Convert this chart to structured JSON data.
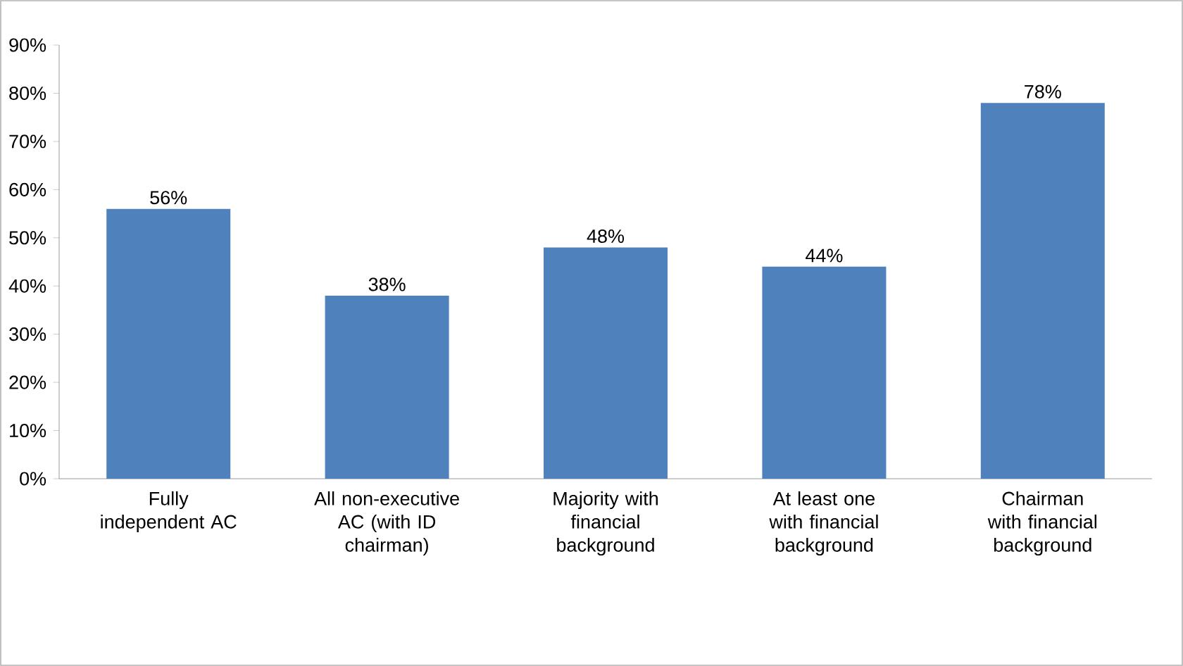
{
  "chart_data": {
    "type": "bar",
    "categories": [
      "Fully independent AC",
      "All non-executive AC (with ID chairman)",
      "Majority with financial background",
      "At least one with financial background",
      "Chairman with financial background"
    ],
    "values": [
      56,
      38,
      48,
      44,
      78
    ],
    "value_labels": [
      "56%",
      "38%",
      "48%",
      "44%",
      "78%"
    ],
    "color": "#4f81bd",
    "ylim": [
      0,
      90
    ],
    "yticks": [
      {
        "value": 0,
        "label": "0%"
      },
      {
        "value": 10,
        "label": "10%"
      },
      {
        "value": 20,
        "label": "20%"
      },
      {
        "value": 30,
        "label": "30%"
      },
      {
        "value": 40,
        "label": "40%"
      },
      {
        "value": 50,
        "label": "50%"
      },
      {
        "value": 60,
        "label": "60%"
      },
      {
        "value": 70,
        "label": "70%"
      },
      {
        "value": 80,
        "label": "80%"
      },
      {
        "value": 90,
        "label": "90%"
      }
    ],
    "grid": false
  }
}
